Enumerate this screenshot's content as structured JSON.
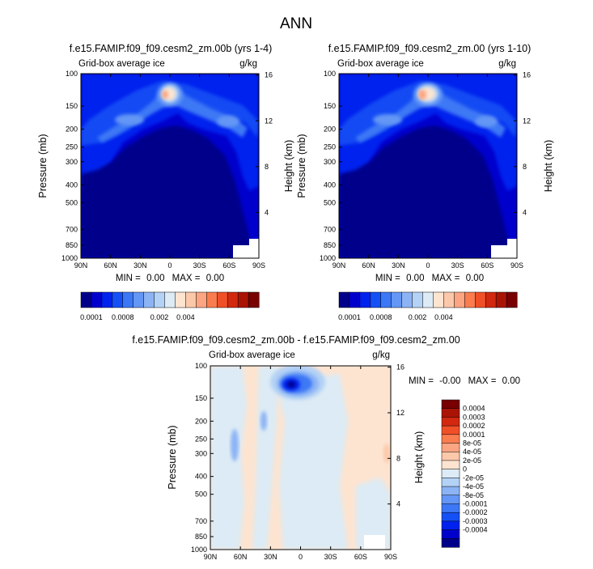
{
  "page_title": "ANN",
  "chart_data": [
    {
      "type": "heatmap",
      "title": "f.e15.FAMIP.f09_f09.cesm2_zm.00b (yrs 1-4)",
      "subtitle_left": "Grid-box average ice",
      "subtitle_right": "g/kg",
      "xlabel": "",
      "ylabel": "Pressure (mb)",
      "ylabel_right": "Height (km)",
      "x_ticks": [
        "90N",
        "60N",
        "30N",
        "0",
        "30S",
        "60S",
        "90S"
      ],
      "y_ticks": [
        "100",
        "150",
        "200",
        "250",
        "300",
        "400",
        "500",
        "700",
        "850",
        "1000"
      ],
      "y_right_ticks": [
        "16",
        "12",
        "8",
        "4"
      ],
      "stats": {
        "min_label": "MIN =",
        "min": "0.00",
        "max_label": "MAX =",
        "max": "0.00"
      },
      "colorbar": {
        "colors": [
          "#00008b",
          "#0000cd",
          "#0022ee",
          "#1450f5",
          "#3c78f5",
          "#6496f5",
          "#8cb4f5",
          "#b4d2f5",
          "#dcebf5",
          "#fde4d0",
          "#fcc8aa",
          "#fba582",
          "#fa7d50",
          "#f05028",
          "#d22810",
          "#aa1405",
          "#780000"
        ],
        "labels": [
          "0.0001",
          "0.0008",
          "0.002",
          "0.004"
        ]
      }
    },
    {
      "type": "heatmap",
      "title": "f.e15.FAMIP.f09_f09.cesm2_zm.00 (yrs 1-10)",
      "subtitle_left": "Grid-box average ice",
      "subtitle_right": "g/kg",
      "xlabel": "",
      "ylabel": "Pressure (mb)",
      "ylabel_right": "Height (km)",
      "x_ticks": [
        "90N",
        "60N",
        "30N",
        "0",
        "30S",
        "60S",
        "90S"
      ],
      "y_ticks": [
        "100",
        "150",
        "200",
        "250",
        "300",
        "400",
        "500",
        "700",
        "850",
        "1000"
      ],
      "y_right_ticks": [
        "16",
        "12",
        "8",
        "4"
      ],
      "stats": {
        "min_label": "MIN =",
        "min": "0.00",
        "max_label": "MAX =",
        "max": "0.00"
      },
      "colorbar": {
        "colors": [
          "#00008b",
          "#0000cd",
          "#0022ee",
          "#1450f5",
          "#3c78f5",
          "#6496f5",
          "#8cb4f5",
          "#b4d2f5",
          "#dcebf5",
          "#fde4d0",
          "#fcc8aa",
          "#fba582",
          "#fa7d50",
          "#f05028",
          "#d22810",
          "#aa1405",
          "#780000"
        ],
        "labels": [
          "0.0001",
          "0.0008",
          "0.002",
          "0.004"
        ]
      }
    },
    {
      "type": "heatmap",
      "title": "f.e15.FAMIP.f09_f09.cesm2_zm.00b - f.e15.FAMIP.f09_f09.cesm2_zm.00",
      "subtitle_left": "Grid-box average ice",
      "subtitle_right": "g/kg",
      "xlabel": "",
      "ylabel": "Pressure (mb)",
      "ylabel_right": "Height (km)",
      "x_ticks": [
        "90N",
        "60N",
        "30N",
        "0",
        "30S",
        "60S",
        "90S"
      ],
      "y_ticks": [
        "100",
        "150",
        "200",
        "250",
        "300",
        "400",
        "500",
        "700",
        "850",
        "1000"
      ],
      "y_right_ticks": [
        "16",
        "12",
        "8",
        "4"
      ],
      "stats": {
        "min_label": "MIN =",
        "min": "-0.00",
        "max_label": "MAX =",
        "max": "0.00"
      },
      "colorbar": {
        "colors": [
          "#00008b",
          "#0000cd",
          "#0022ee",
          "#1450f5",
          "#3c78f5",
          "#6496f5",
          "#8cb4f5",
          "#b4d2f5",
          "#dcebf5",
          "#fde4d0",
          "#fcc8aa",
          "#fba582",
          "#fa7d50",
          "#f05028",
          "#d22810",
          "#aa1405",
          "#780000"
        ],
        "labels": [
          "0.0004",
          "0.0003",
          "0.0002",
          "0.0001",
          "8e-05",
          "4e-05",
          "2e-05",
          "0",
          "-2e-05",
          "-4e-05",
          "-8e-05",
          "-0.0001",
          "-0.0002",
          "-0.0003",
          "-0.0004"
        ]
      }
    }
  ]
}
